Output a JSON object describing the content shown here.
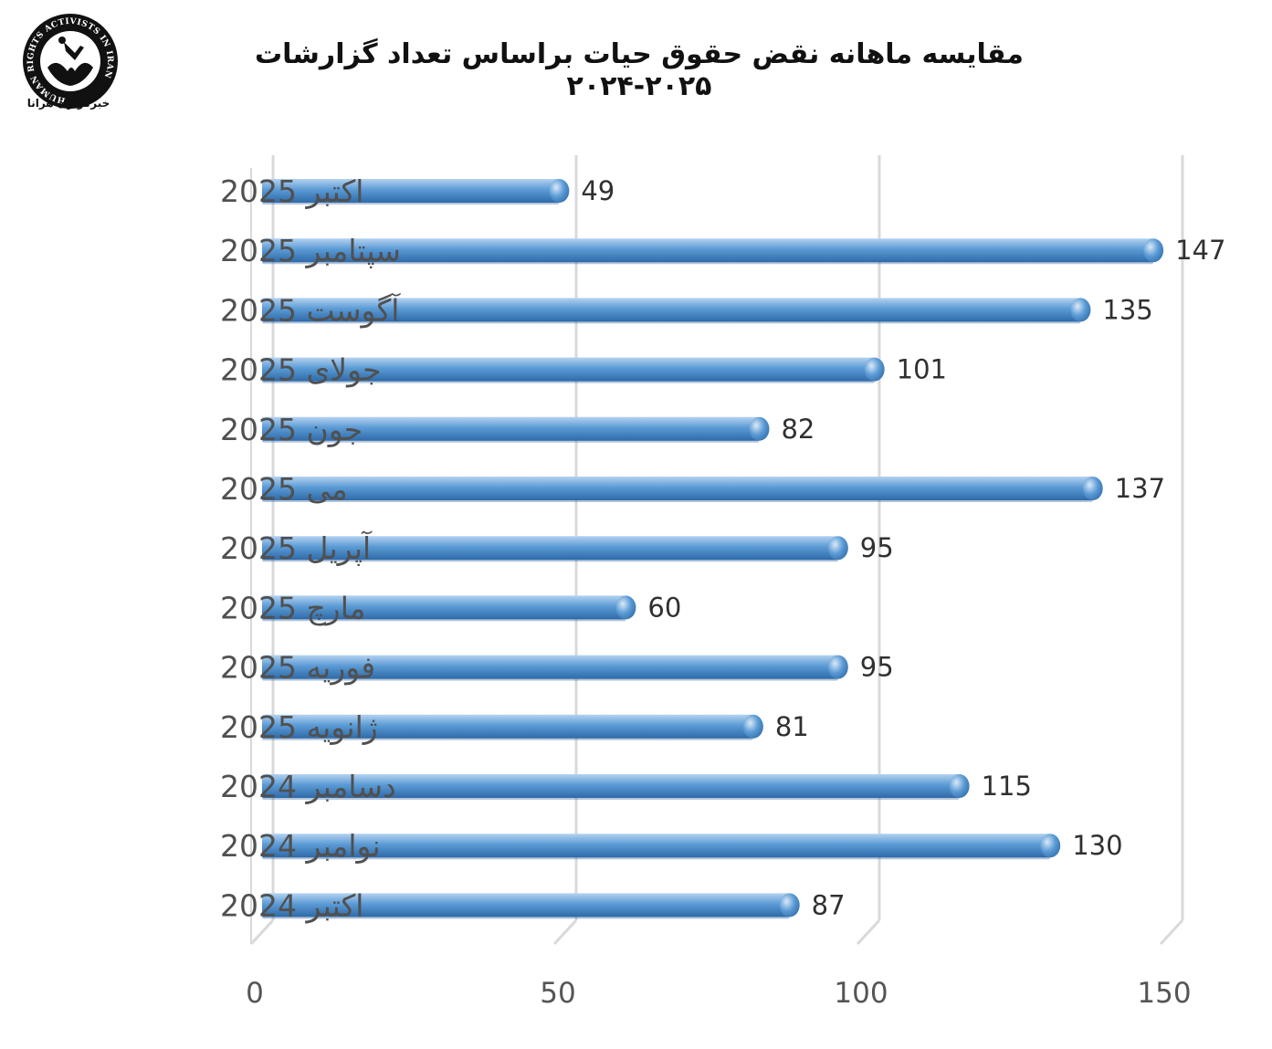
{
  "title": "مقایسه ماهانه نقض حقوق حیات براساس تعداد گزارشات ۲۰۲۵-۲۰۲۴",
  "logo": {
    "icon": "human-rights-activists-logo",
    "ring_text": "HUMAN RIGHTS ACTIVISTS IN IRAN",
    "caption": "خبرگزاری هرانا"
  },
  "colors": {
    "bar": "#5b9bd5",
    "bar_light": "#b4d2f0",
    "bar_dark": "#2e6aa8",
    "grid": "#d9d9d9"
  },
  "chart_data": {
    "type": "bar",
    "orientation": "horizontal",
    "categories": [
      "اکتبر 2025",
      "سپتامبر 2025",
      "آگوست 2025",
      "جولای 2025",
      "جون 2025",
      "می 2025",
      "آپریل 2025",
      "مارچ 2025",
      "فوریه 2025",
      "ژانویه 2025",
      "دسامبر 2024",
      "نوامبر 2024",
      "اکتبر 2024"
    ],
    "values": [
      49,
      147,
      135,
      101,
      82,
      137,
      95,
      60,
      95,
      81,
      115,
      130,
      87
    ],
    "xticks": [
      "0",
      "50",
      "100",
      "150"
    ],
    "xlim": [
      0,
      150
    ],
    "grid": true,
    "legend": "none",
    "style": "3d-cylinder"
  }
}
